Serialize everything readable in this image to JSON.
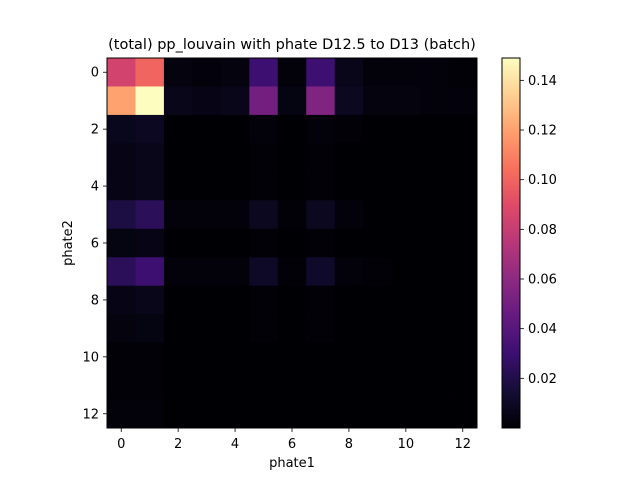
{
  "chart_data": {
    "type": "heatmap",
    "title": "(total) pp_louvain with phate D12.5 to D13 (batch)",
    "xlabel": "phate1",
    "ylabel": "phate2",
    "x_ticks": [
      0,
      2,
      4,
      6,
      8,
      10,
      12
    ],
    "y_ticks": [
      0,
      2,
      4,
      6,
      8,
      10,
      12
    ],
    "x_range": [
      -0.5,
      12.5
    ],
    "y_range": [
      -0.5,
      12.5
    ],
    "colormap": "magma",
    "colorbar": {
      "ticks": [
        0.02,
        0.04,
        0.06,
        0.08,
        0.1,
        0.12,
        0.14
      ],
      "tick_labels": [
        "0.02",
        "0.04",
        "0.06",
        "0.08",
        "0.10",
        "0.12",
        "0.14"
      ],
      "vmin": 0.0,
      "vmax": 0.149
    },
    "matrix": [
      [
        0.085,
        0.1,
        0.003,
        0.002,
        0.003,
        0.03,
        0.002,
        0.03,
        0.006,
        0.002,
        0.002,
        0.002,
        0.001
      ],
      [
        0.12,
        0.149,
        0.006,
        0.005,
        0.006,
        0.05,
        0.004,
        0.055,
        0.008,
        0.003,
        0.003,
        0.002,
        0.002
      ],
      [
        0.007,
        0.009,
        0.0,
        0.0,
        0.0,
        0.002,
        0.0,
        0.002,
        0.001,
        0.0,
        0.0,
        0.0,
        0.0
      ],
      [
        0.005,
        0.006,
        0.0,
        0.0,
        0.0,
        0.001,
        0.0,
        0.001,
        0.0,
        0.0,
        0.0,
        0.0,
        0.0
      ],
      [
        0.005,
        0.006,
        0.0,
        0.0,
        0.0,
        0.001,
        0.0,
        0.001,
        0.0,
        0.0,
        0.0,
        0.0,
        0.0
      ],
      [
        0.018,
        0.024,
        0.002,
        0.002,
        0.002,
        0.008,
        0.001,
        0.008,
        0.002,
        0.0,
        0.0,
        0.0,
        0.0
      ],
      [
        0.004,
        0.005,
        0.0,
        0.0,
        0.0,
        0.001,
        0.0,
        0.001,
        0.0,
        0.0,
        0.0,
        0.0,
        0.0
      ],
      [
        0.024,
        0.03,
        0.002,
        0.002,
        0.002,
        0.01,
        0.001,
        0.011,
        0.002,
        0.001,
        0.0,
        0.0,
        0.0
      ],
      [
        0.005,
        0.006,
        0.0,
        0.0,
        0.0,
        0.001,
        0.0,
        0.001,
        0.0,
        0.0,
        0.0,
        0.0,
        0.0
      ],
      [
        0.003,
        0.004,
        0.0,
        0.0,
        0.0,
        0.001,
        0.0,
        0.001,
        0.0,
        0.0,
        0.0,
        0.0,
        0.0
      ],
      [
        0.001,
        0.001,
        0.0,
        0.0,
        0.0,
        0.0,
        0.0,
        0.0,
        0.0,
        0.0,
        0.0,
        0.0,
        0.0
      ],
      [
        0.001,
        0.001,
        0.0,
        0.0,
        0.0,
        0.0,
        0.0,
        0.0,
        0.0,
        0.0,
        0.0,
        0.0,
        0.0
      ],
      [
        0.002,
        0.002,
        0.0,
        0.0,
        0.0,
        0.0,
        0.0,
        0.0,
        0.0,
        0.0,
        0.0,
        0.0,
        0.0
      ]
    ]
  }
}
